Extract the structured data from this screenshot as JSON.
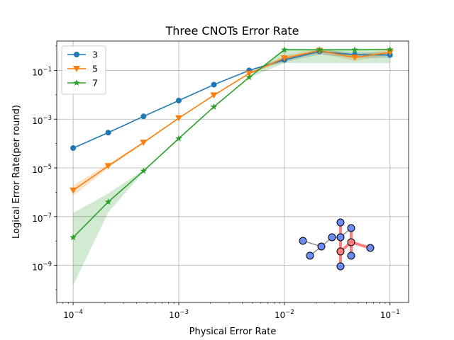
{
  "chart_data": {
    "type": "line",
    "title": "Three CNOTs Error Rate",
    "xlabel": "Physical Error Rate",
    "ylabel": "Logical Error Rate(per round)",
    "xscale": "log",
    "yscale": "log",
    "xlim": [
      7e-05,
      0.15
    ],
    "ylim": [
      3e-11,
      1.6
    ],
    "grid": true,
    "legend_position": "top-left",
    "x_ticks": [
      {
        "value": 0.0001,
        "base": "10",
        "exp": "−4"
      },
      {
        "value": 0.001,
        "base": "10",
        "exp": "−3"
      },
      {
        "value": 0.01,
        "base": "10",
        "exp": "−2"
      },
      {
        "value": 0.1,
        "base": "10",
        "exp": "−1"
      }
    ],
    "y_ticks": [
      {
        "value": 1e-09,
        "base": "10",
        "exp": "−9"
      },
      {
        "value": 1e-07,
        "base": "10",
        "exp": "−7"
      },
      {
        "value": 1e-05,
        "base": "10",
        "exp": "−5"
      },
      {
        "value": 0.001,
        "base": "10",
        "exp": "−3"
      },
      {
        "value": 0.1,
        "base": "10",
        "exp": "−1"
      }
    ],
    "x": [
      0.0001,
      0.000215,
      0.000464,
      0.001,
      0.00215,
      0.00464,
      0.01,
      0.0215,
      0.0464,
      0.1
    ],
    "series": [
      {
        "name": "3",
        "color": "#1f77b4",
        "marker": "circle",
        "values": [
          6.5e-05,
          0.00028,
          0.0013,
          0.0058,
          0.026,
          0.1,
          0.27,
          0.6,
          0.44,
          0.43
        ],
        "lower": [
          6.1e-05,
          0.00027,
          0.00125,
          0.0056,
          0.025,
          0.096,
          0.22,
          0.45,
          0.33,
          0.32
        ],
        "upper": [
          7e-05,
          0.00029,
          0.00135,
          0.006,
          0.027,
          0.104,
          0.33,
          0.72,
          0.55,
          0.54
        ]
      },
      {
        "name": "5",
        "color": "#ff7f0e",
        "marker": "triangle-down",
        "values": [
          1.2e-06,
          1.2e-05,
          0.00011,
          0.0011,
          0.0096,
          0.075,
          0.32,
          0.65,
          0.34,
          0.55
        ],
        "lower": [
          7e-07,
          1e-05,
          0.0001,
          0.00105,
          0.0093,
          0.07,
          0.24,
          0.5,
          0.25,
          0.42
        ],
        "upper": [
          1.9e-06,
          1.45e-05,
          0.00012,
          0.00115,
          0.0099,
          0.08,
          0.42,
          0.8,
          0.46,
          0.7
        ]
      },
      {
        "name": "7",
        "color": "#2ca02c",
        "marker": "star",
        "values": [
          1.4e-08,
          4e-07,
          7.5e-06,
          0.00016,
          0.0032,
          0.052,
          0.7,
          0.7,
          0.7,
          0.72
        ],
        "lower": [
          1.5e-10,
          1.5e-07,
          6.8e-06,
          0.000152,
          0.0031,
          0.049,
          0.2,
          0.2,
          0.2,
          0.2
        ],
        "upper": [
          1.4e-07,
          9e-07,
          8.2e-06,
          0.000168,
          0.0033,
          0.055,
          0.78,
          0.78,
          0.78,
          0.78
        ]
      }
    ]
  }
}
